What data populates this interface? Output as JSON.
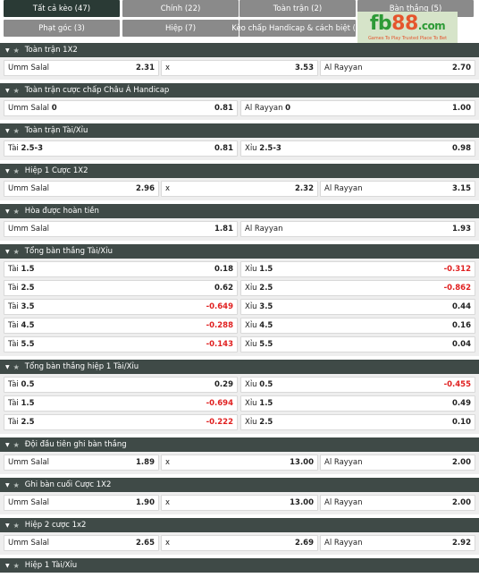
{
  "tabs": [
    {
      "label": "Tất cả kèo (47)",
      "active": true
    },
    {
      "label": "Chính (22)",
      "active": false
    },
    {
      "label": "Toàn trận (2)",
      "active": false
    },
    {
      "label": "Bàn thắng (5)",
      "active": false
    },
    {
      "label": "Phạt góc (3)",
      "active": false
    },
    {
      "label": "Hiệp (7)",
      "active": false
    },
    {
      "label": "Kèo chấp Handicap & cách biệt (1)",
      "active": false
    }
  ],
  "logo": {
    "fb": "fb",
    "num": "88",
    "dom": ".com",
    "tag_a": "Games To Play",
    "tag_b": "Trusted Place To Bet"
  },
  "markets": [
    {
      "title": "Toàn trận 1X2",
      "cols": 3,
      "rows": [
        [
          {
            "label": "Umm Salal",
            "odd": "2.31"
          },
          {
            "label": "x",
            "odd": "3.53"
          },
          {
            "label": "Al Rayyan",
            "odd": "2.70"
          }
        ]
      ]
    },
    {
      "title": "Toàn trận cược chấp Châu Á Handicap",
      "cols": 2,
      "rows": [
        [
          {
            "label": "Umm Salal",
            "line": "0",
            "odd": "0.81"
          },
          {
            "label": "Al Rayyan",
            "line": "0",
            "odd": "1.00"
          }
        ]
      ]
    },
    {
      "title": "Toàn trận Tài/Xỉu",
      "cols": 2,
      "rows": [
        [
          {
            "label": "Tài",
            "line": "2.5-3",
            "odd": "0.81"
          },
          {
            "label": "Xỉu",
            "line": "2.5-3",
            "odd": "0.98"
          }
        ]
      ]
    },
    {
      "title": "Hiệp 1 Cược 1X2",
      "cols": 3,
      "rows": [
        [
          {
            "label": "Umm Salal",
            "odd": "2.96"
          },
          {
            "label": "x",
            "odd": "2.32"
          },
          {
            "label": "Al Rayyan",
            "odd": "3.15"
          }
        ]
      ]
    },
    {
      "title": "Hòa được hoàn tiền",
      "cols": 2,
      "rows": [
        [
          {
            "label": "Umm Salal",
            "odd": "1.81"
          },
          {
            "label": "Al Rayyan",
            "odd": "1.93"
          }
        ]
      ]
    },
    {
      "title": "Tổng bàn thắng Tài/Xỉu",
      "cols": 2,
      "rows": [
        [
          {
            "label": "Tài",
            "line": "1.5",
            "odd": "0.18"
          },
          {
            "label": "Xỉu",
            "line": "1.5",
            "odd": "-0.312"
          }
        ],
        [
          {
            "label": "Tài",
            "line": "2.5",
            "odd": "0.62"
          },
          {
            "label": "Xỉu",
            "line": "2.5",
            "odd": "-0.862"
          }
        ],
        [
          {
            "label": "Tài",
            "line": "3.5",
            "odd": "-0.649"
          },
          {
            "label": "Xỉu",
            "line": "3.5",
            "odd": "0.44"
          }
        ],
        [
          {
            "label": "Tài",
            "line": "4.5",
            "odd": "-0.288"
          },
          {
            "label": "Xỉu",
            "line": "4.5",
            "odd": "0.16"
          }
        ],
        [
          {
            "label": "Tài",
            "line": "5.5",
            "odd": "-0.143"
          },
          {
            "label": "Xỉu",
            "line": "5.5",
            "odd": "0.04"
          }
        ]
      ]
    },
    {
      "title": "Tổng bàn thắng hiệp 1 Tài/Xỉu",
      "cols": 2,
      "rows": [
        [
          {
            "label": "Tài",
            "line": "0.5",
            "odd": "0.29"
          },
          {
            "label": "Xỉu",
            "line": "0.5",
            "odd": "-0.455"
          }
        ],
        [
          {
            "label": "Tài",
            "line": "1.5",
            "odd": "-0.694"
          },
          {
            "label": "Xỉu",
            "line": "1.5",
            "odd": "0.49"
          }
        ],
        [
          {
            "label": "Tài",
            "line": "2.5",
            "odd": "-0.222"
          },
          {
            "label": "Xỉu",
            "line": "2.5",
            "odd": "0.10"
          }
        ]
      ]
    },
    {
      "title": "Đội đầu tiên ghi bàn thắng",
      "cols": 3,
      "rows": [
        [
          {
            "label": "Umm Salal",
            "odd": "1.89"
          },
          {
            "label": "x",
            "odd": "13.00"
          },
          {
            "label": "Al Rayyan",
            "odd": "2.00"
          }
        ]
      ]
    },
    {
      "title": "Ghi bàn cuối Cược 1X2",
      "cols": 3,
      "rows": [
        [
          {
            "label": "Umm Salal",
            "odd": "1.90"
          },
          {
            "label": "x",
            "odd": "13.00"
          },
          {
            "label": "Al Rayyan",
            "odd": "2.00"
          }
        ]
      ]
    },
    {
      "title": "Hiệp 2 cược 1x2",
      "cols": 3,
      "rows": [
        [
          {
            "label": "Umm Salal",
            "odd": "2.65"
          },
          {
            "label": "x",
            "odd": "2.69"
          },
          {
            "label": "Al Rayyan",
            "odd": "2.92"
          }
        ]
      ]
    },
    {
      "title": "Hiệp 1 Tài/Xỉu",
      "cols": 2,
      "rows": []
    }
  ],
  "colors": {
    "header": "#3f4a47",
    "active_tab": "#2a3a35",
    "tab": "#8a8a8a",
    "negative": "#e02020"
  }
}
